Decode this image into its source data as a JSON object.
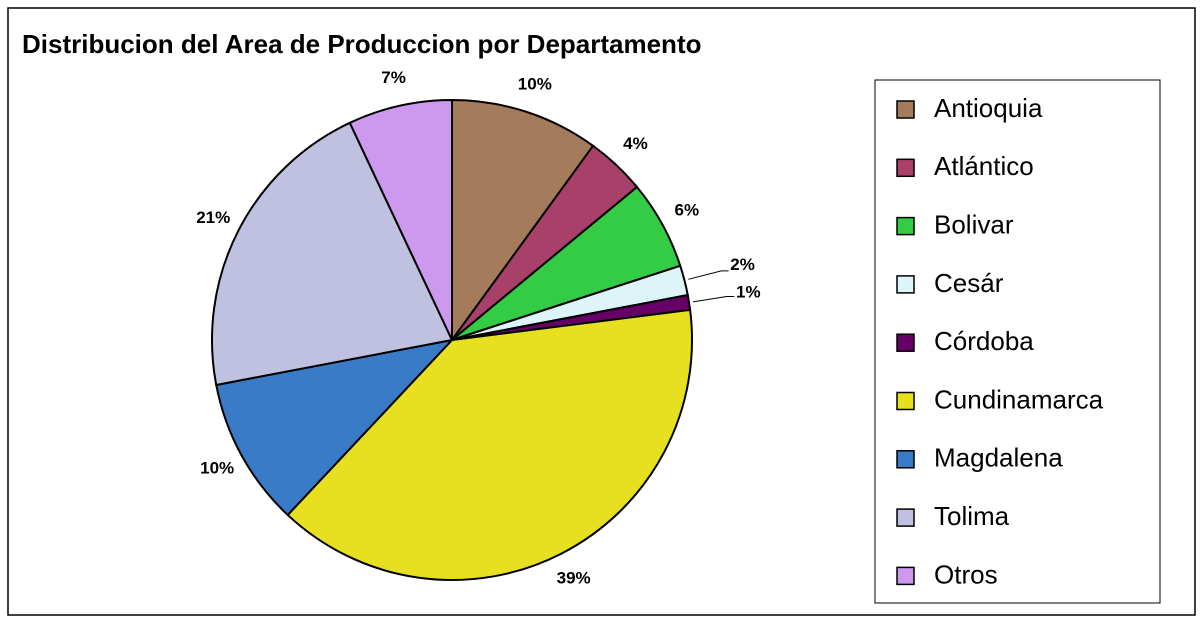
{
  "chart_data": {
    "type": "pie",
    "title": "Distribucion del Area de Produccion por Departamento",
    "categories": [
      "Antioquia",
      "Atlántico",
      "Bolivar",
      "Cesár",
      "Córdoba",
      "Cundinamarca",
      "Magdalena",
      "Tolima",
      "Otros"
    ],
    "values": [
      10,
      4,
      6,
      2,
      1,
      39,
      10,
      21,
      7
    ],
    "value_labels": [
      "10%",
      "4%",
      "6%",
      "2%",
      "1%",
      "39%",
      "10%",
      "21%",
      "7%"
    ],
    "colors": [
      "#a47c5c",
      "#a8406a",
      "#33cc44",
      "#ddf4f8",
      "#660066",
      "#e6e020",
      "#3a7bc8",
      "#c0c0e0",
      "#cc99ee"
    ]
  }
}
